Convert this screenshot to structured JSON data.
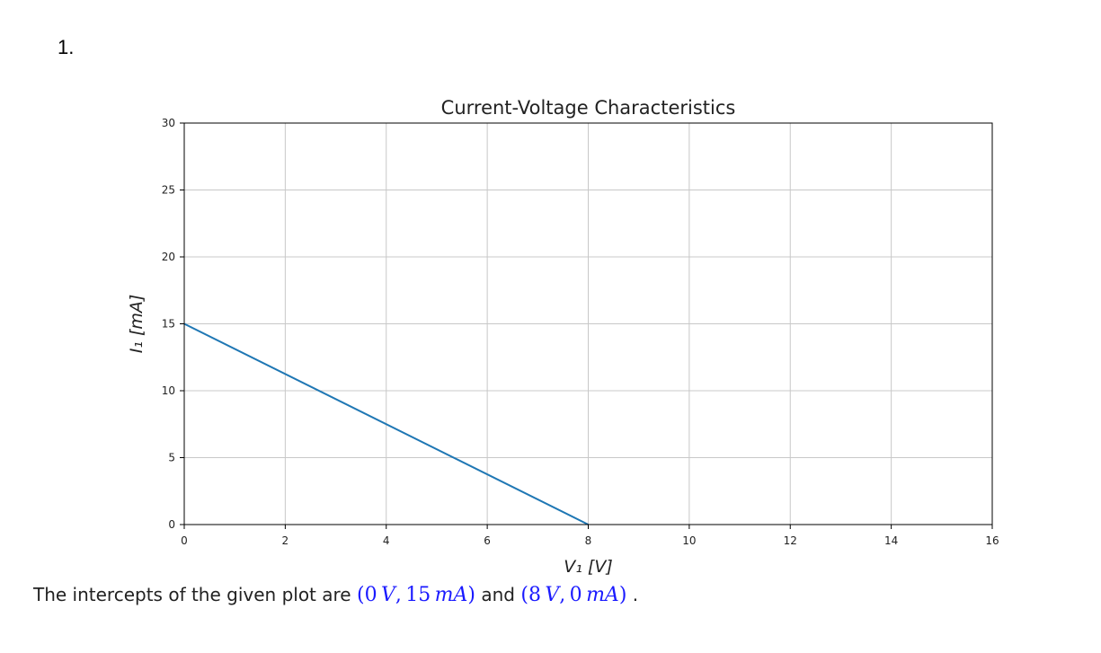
{
  "question_number": "1.",
  "chart_data": {
    "type": "line",
    "title": "Current-Voltage Characteristics",
    "xlabel": "V₁ [V]",
    "ylabel": "I₁ [mA]",
    "xlim": [
      0,
      16
    ],
    "ylim": [
      0,
      30
    ],
    "xticks": [
      0,
      2,
      4,
      6,
      8,
      10,
      12,
      14,
      16
    ],
    "yticks": [
      0,
      5,
      10,
      15,
      20,
      25,
      30
    ],
    "grid": true,
    "series": [
      {
        "x": [
          0,
          8
        ],
        "y": [
          15,
          0
        ],
        "color": "#1f77b4"
      }
    ]
  },
  "answer": {
    "prefix": "The intercepts of the given plot are ",
    "point1": {
      "open": "(",
      "v1": "0",
      "u1": "V",
      "comma": ",",
      "v2": "15",
      "u2": "mA",
      "close": ")"
    },
    "middle": " and ",
    "point2": {
      "open": "(",
      "v1": "8",
      "u1": "V",
      "comma": ",",
      "v2": "0",
      "u2": "mA",
      "close": ")"
    },
    "suffix": " ."
  }
}
